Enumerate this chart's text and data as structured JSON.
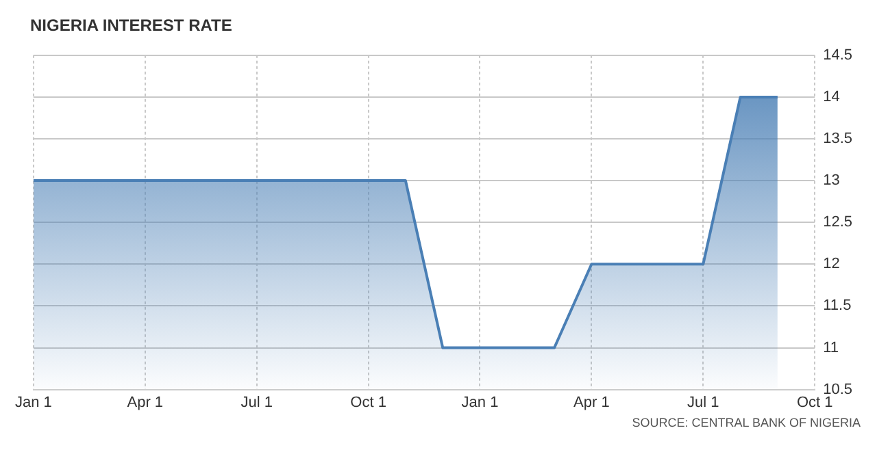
{
  "chart_data": {
    "type": "area",
    "title": "NIGERIA INTEREST RATE",
    "categories": [
      "Jan 1",
      null,
      null,
      "Apr 1",
      null,
      null,
      "Jul 1",
      null,
      null,
      "Oct 1",
      null,
      null,
      "Jan 1",
      null,
      null,
      "Apr 1",
      null,
      null,
      "Jul 1",
      null,
      null,
      "Oct 1"
    ],
    "series": [
      {
        "color": "#4a7fb5",
        "values": [
          13,
          13,
          13,
          13,
          13,
          13,
          13,
          13,
          13,
          13,
          13,
          11,
          11,
          11,
          11,
          12,
          12,
          12,
          12,
          14,
          14,
          null
        ]
      }
    ],
    "ylim": [
      10.5,
      14.5
    ],
    "yticks": [
      10.5,
      11,
      11.5,
      12,
      12.5,
      13,
      13.5,
      14,
      14.5
    ],
    "grid": true,
    "marker": "none",
    "line_style": "solid",
    "annotations": [
      "SOURCE: CENTRAL BANK OF NIGERIA"
    ]
  }
}
